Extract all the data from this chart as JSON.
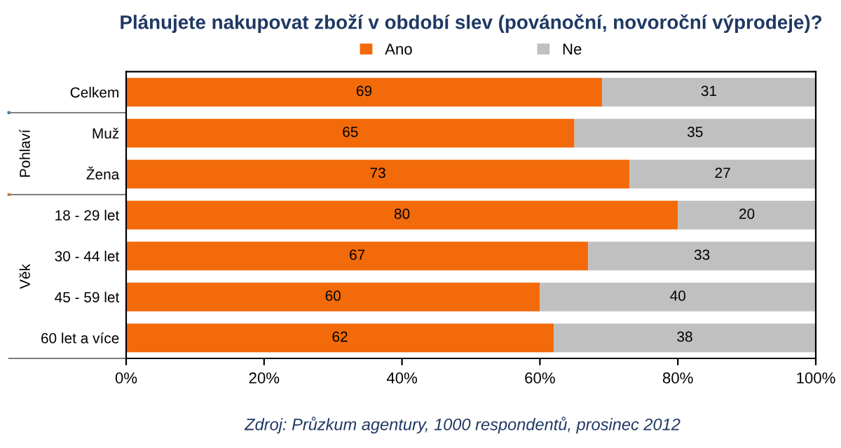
{
  "chart_data": {
    "type": "bar",
    "orientation": "horizontal",
    "stacked": true,
    "title": "Plánujete nakupovat zboží v období slev (povánoční, novoroční výprodeje)?",
    "categories": [
      "Celkem",
      "Muž",
      "Žena",
      "18 - 29 let",
      "30 - 44 let",
      "45 - 59 let",
      "60 let a více"
    ],
    "series": [
      {
        "name": "Ano",
        "color": "#f26a0a",
        "values": [
          69,
          65,
          73,
          80,
          67,
          60,
          62
        ]
      },
      {
        "name": "Ne",
        "color": "#c0c0c0",
        "values": [
          31,
          35,
          27,
          20,
          33,
          40,
          38
        ]
      }
    ],
    "xlim": [
      0,
      100
    ],
    "xticks": [
      {
        "value": 0,
        "label": "0%"
      },
      {
        "value": 20,
        "label": "20%"
      },
      {
        "value": 40,
        "label": "40%"
      },
      {
        "value": 60,
        "label": "60%"
      },
      {
        "value": 80,
        "label": "80%"
      },
      {
        "value": 100,
        "label": "100%"
      }
    ],
    "data_labels": true,
    "legend": "top",
    "grid": false,
    "annotations": [
      "Pohlaví",
      "Věk",
      "Zdroj: Průzkum agentury, 1000 respondentů, prosinec 2012"
    ]
  }
}
